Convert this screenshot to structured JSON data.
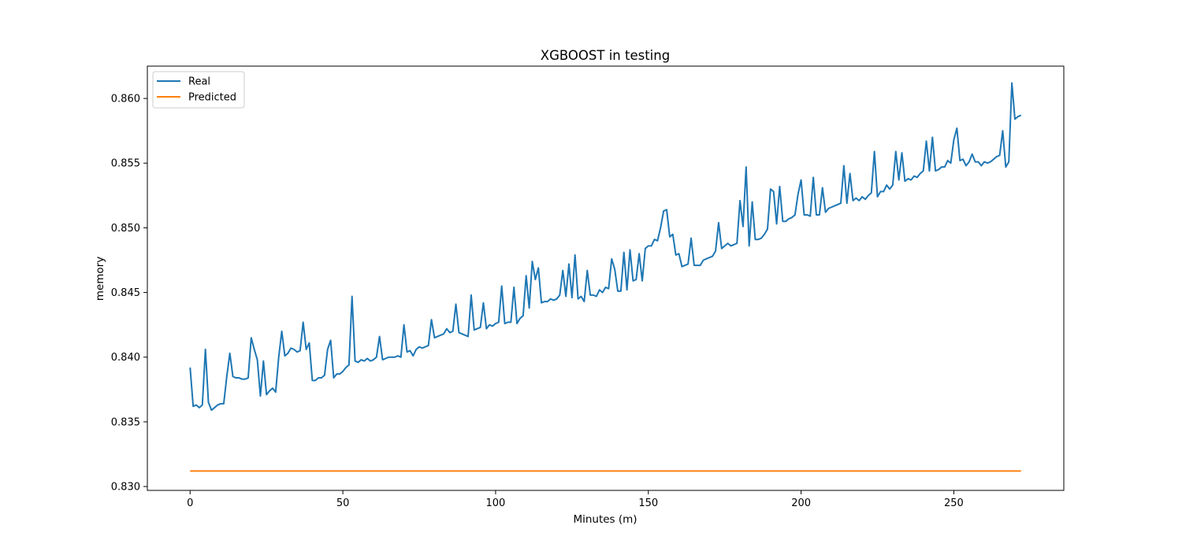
{
  "chart_data": {
    "type": "line",
    "title": "XGBOOST in testing",
    "xlabel": "Minutes (m)",
    "ylabel": "memory",
    "xlim": [
      -14,
      286
    ],
    "ylim": [
      0.8297,
      0.8625
    ],
    "xticks": [
      0,
      50,
      100,
      150,
      200,
      250
    ],
    "xtick_labels": [
      "0",
      "50",
      "100",
      "150",
      "200",
      "250"
    ],
    "yticks": [
      0.83,
      0.835,
      0.84,
      0.845,
      0.85,
      0.855,
      0.86
    ],
    "ytick_labels": [
      "0.830",
      "0.835",
      "0.840",
      "0.845",
      "0.850",
      "0.855",
      "0.860"
    ],
    "grid": false,
    "legend_position": "upper-left",
    "series": [
      {
        "name": "Real",
        "color": "#1f77b4",
        "points": [
          [
            0,
            0.8392
          ],
          [
            1,
            0.8362
          ],
          [
            2,
            0.8363
          ],
          [
            3,
            0.8361
          ],
          [
            4,
            0.8363
          ],
          [
            5,
            0.8406
          ],
          [
            6,
            0.8365
          ],
          [
            7,
            0.8359
          ],
          [
            8,
            0.8361
          ],
          [
            9,
            0.8363
          ],
          [
            10,
            0.8364
          ],
          [
            11,
            0.8364
          ],
          [
            12,
            0.8385
          ],
          [
            13,
            0.8403
          ],
          [
            14,
            0.8385
          ],
          [
            15,
            0.8384
          ],
          [
            16,
            0.8384
          ],
          [
            17,
            0.8383
          ],
          [
            18,
            0.8383
          ],
          [
            19,
            0.8384
          ],
          [
            20,
            0.8415
          ],
          [
            21,
            0.8406
          ],
          [
            22,
            0.8398
          ],
          [
            23,
            0.837
          ],
          [
            24,
            0.8397
          ],
          [
            25,
            0.8371
          ],
          [
            26,
            0.8374
          ],
          [
            27,
            0.8376
          ],
          [
            28,
            0.8373
          ],
          [
            29,
            0.84
          ],
          [
            30,
            0.842
          ],
          [
            31,
            0.8401
          ],
          [
            32,
            0.8403
          ],
          [
            33,
            0.8407
          ],
          [
            34,
            0.8406
          ],
          [
            35,
            0.8404
          ],
          [
            36,
            0.8405
          ],
          [
            37,
            0.8427
          ],
          [
            38,
            0.8406
          ],
          [
            39,
            0.8411
          ],
          [
            40,
            0.8382
          ],
          [
            41,
            0.8382
          ],
          [
            42,
            0.8384
          ],
          [
            43,
            0.8384
          ],
          [
            44,
            0.8386
          ],
          [
            45,
            0.8406
          ],
          [
            46,
            0.8413
          ],
          [
            47,
            0.8384
          ],
          [
            48,
            0.8387
          ],
          [
            49,
            0.8387
          ],
          [
            50,
            0.8389
          ],
          [
            51,
            0.8392
          ],
          [
            52,
            0.8394
          ],
          [
            53,
            0.8447
          ],
          [
            54,
            0.8397
          ],
          [
            55,
            0.8396
          ],
          [
            56,
            0.8398
          ],
          [
            57,
            0.8397
          ],
          [
            58,
            0.8399
          ],
          [
            59,
            0.8397
          ],
          [
            60,
            0.8398
          ],
          [
            61,
            0.84
          ],
          [
            62,
            0.8416
          ],
          [
            63,
            0.8398
          ],
          [
            64,
            0.8399
          ],
          [
            65,
            0.84
          ],
          [
            66,
            0.84
          ],
          [
            67,
            0.84
          ],
          [
            68,
            0.8401
          ],
          [
            69,
            0.84
          ],
          [
            70,
            0.8425
          ],
          [
            71,
            0.8404
          ],
          [
            72,
            0.8405
          ],
          [
            73,
            0.8401
          ],
          [
            74,
            0.8406
          ],
          [
            75,
            0.8408
          ],
          [
            76,
            0.8407
          ],
          [
            77,
            0.8408
          ],
          [
            78,
            0.8409
          ],
          [
            79,
            0.8429
          ],
          [
            80,
            0.8415
          ],
          [
            81,
            0.8416
          ],
          [
            82,
            0.8417
          ],
          [
            83,
            0.8418
          ],
          [
            84,
            0.8422
          ],
          [
            85,
            0.8419
          ],
          [
            86,
            0.842
          ],
          [
            87,
            0.8441
          ],
          [
            88,
            0.8419
          ],
          [
            89,
            0.8418
          ],
          [
            90,
            0.8417
          ],
          [
            91,
            0.8416
          ],
          [
            92,
            0.8448
          ],
          [
            93,
            0.8421
          ],
          [
            94,
            0.8422
          ],
          [
            95,
            0.8423
          ],
          [
            96,
            0.8442
          ],
          [
            97,
            0.8422
          ],
          [
            98,
            0.8425
          ],
          [
            99,
            0.8424
          ],
          [
            100,
            0.8426
          ],
          [
            101,
            0.8427
          ],
          [
            102,
            0.8455
          ],
          [
            103,
            0.8426
          ],
          [
            104,
            0.8427
          ],
          [
            105,
            0.8427
          ],
          [
            106,
            0.8454
          ],
          [
            107,
            0.8426
          ],
          [
            108,
            0.843
          ],
          [
            109,
            0.8432
          ],
          [
            110,
            0.8463
          ],
          [
            111,
            0.8438
          ],
          [
            112,
            0.8474
          ],
          [
            113,
            0.846
          ],
          [
            114,
            0.8469
          ],
          [
            115,
            0.8442
          ],
          [
            116,
            0.8443
          ],
          [
            117,
            0.8443
          ],
          [
            118,
            0.8445
          ],
          [
            119,
            0.8444
          ],
          [
            120,
            0.8445
          ],
          [
            121,
            0.8448
          ],
          [
            122,
            0.8467
          ],
          [
            123,
            0.8447
          ],
          [
            124,
            0.8472
          ],
          [
            125,
            0.8446
          ],
          [
            126,
            0.8479
          ],
          [
            127,
            0.8445
          ],
          [
            128,
            0.8447
          ],
          [
            129,
            0.8443
          ],
          [
            130,
            0.8467
          ],
          [
            131,
            0.8448
          ],
          [
            132,
            0.8448
          ],
          [
            133,
            0.8447
          ],
          [
            134,
            0.8452
          ],
          [
            135,
            0.845
          ],
          [
            136,
            0.8454
          ],
          [
            137,
            0.8453
          ],
          [
            138,
            0.8476
          ],
          [
            139,
            0.8468
          ],
          [
            140,
            0.8451
          ],
          [
            141,
            0.8451
          ],
          [
            142,
            0.8481
          ],
          [
            143,
            0.8452
          ],
          [
            144,
            0.8483
          ],
          [
            145,
            0.8459
          ],
          [
            146,
            0.846
          ],
          [
            147,
            0.848
          ],
          [
            148,
            0.8459
          ],
          [
            149,
            0.8484
          ],
          [
            150,
            0.8486
          ],
          [
            151,
            0.8486
          ],
          [
            152,
            0.8491
          ],
          [
            153,
            0.849
          ],
          [
            154,
            0.85
          ],
          [
            155,
            0.8513
          ],
          [
            156,
            0.8514
          ],
          [
            157,
            0.8493
          ],
          [
            158,
            0.8495
          ],
          [
            159,
            0.8479
          ],
          [
            160,
            0.848
          ],
          [
            161,
            0.847
          ],
          [
            162,
            0.8471
          ],
          [
            163,
            0.8472
          ],
          [
            164,
            0.8492
          ],
          [
            165,
            0.8471
          ],
          [
            166,
            0.8471
          ],
          [
            167,
            0.8471
          ],
          [
            168,
            0.8475
          ],
          [
            169,
            0.8476
          ],
          [
            170,
            0.8477
          ],
          [
            171,
            0.8478
          ],
          [
            172,
            0.8482
          ],
          [
            173,
            0.8504
          ],
          [
            174,
            0.8484
          ],
          [
            175,
            0.8486
          ],
          [
            176,
            0.8488
          ],
          [
            177,
            0.8486
          ],
          [
            178,
            0.8487
          ],
          [
            179,
            0.8488
          ],
          [
            180,
            0.8521
          ],
          [
            181,
            0.8501
          ],
          [
            182,
            0.8547
          ],
          [
            183,
            0.8486
          ],
          [
            184,
            0.852
          ],
          [
            185,
            0.8491
          ],
          [
            186,
            0.8491
          ],
          [
            187,
            0.8492
          ],
          [
            188,
            0.8495
          ],
          [
            189,
            0.8499
          ],
          [
            190,
            0.853
          ],
          [
            191,
            0.8528
          ],
          [
            192,
            0.8503
          ],
          [
            193,
            0.8532
          ],
          [
            194,
            0.8505
          ],
          [
            195,
            0.8505
          ],
          [
            196,
            0.8507
          ],
          [
            197,
            0.8508
          ],
          [
            198,
            0.851
          ],
          [
            199,
            0.8526
          ],
          [
            200,
            0.8537
          ],
          [
            201,
            0.851
          ],
          [
            202,
            0.851
          ],
          [
            203,
            0.8509
          ],
          [
            204,
            0.8539
          ],
          [
            205,
            0.851
          ],
          [
            206,
            0.851
          ],
          [
            207,
            0.8531
          ],
          [
            208,
            0.8512
          ],
          [
            209,
            0.8515
          ],
          [
            210,
            0.8516
          ],
          [
            211,
            0.8517
          ],
          [
            212,
            0.8518
          ],
          [
            213,
            0.8519
          ],
          [
            214,
            0.8548
          ],
          [
            215,
            0.8519
          ],
          [
            216,
            0.8542
          ],
          [
            217,
            0.8521
          ],
          [
            218,
            0.8523
          ],
          [
            219,
            0.8521
          ],
          [
            220,
            0.8524
          ],
          [
            221,
            0.8522
          ],
          [
            222,
            0.8525
          ],
          [
            223,
            0.8527
          ],
          [
            224,
            0.8559
          ],
          [
            225,
            0.8524
          ],
          [
            226,
            0.8528
          ],
          [
            227,
            0.8528
          ],
          [
            228,
            0.8533
          ],
          [
            229,
            0.853
          ],
          [
            230,
            0.8533
          ],
          [
            231,
            0.8559
          ],
          [
            232,
            0.8537
          ],
          [
            233,
            0.8558
          ],
          [
            234,
            0.8536
          ],
          [
            235,
            0.8538
          ],
          [
            236,
            0.8537
          ],
          [
            237,
            0.854
          ],
          [
            238,
            0.8539
          ],
          [
            239,
            0.8542
          ],
          [
            240,
            0.8544
          ],
          [
            241,
            0.8567
          ],
          [
            242,
            0.8544
          ],
          [
            243,
            0.857
          ],
          [
            244,
            0.8544
          ],
          [
            245,
            0.8545
          ],
          [
            246,
            0.8547
          ],
          [
            247,
            0.8547
          ],
          [
            248,
            0.8552
          ],
          [
            249,
            0.855
          ],
          [
            250,
            0.8568
          ],
          [
            251,
            0.8577
          ],
          [
            252,
            0.8552
          ],
          [
            253,
            0.8553
          ],
          [
            254,
            0.8548
          ],
          [
            255,
            0.8551
          ],
          [
            256,
            0.8557
          ],
          [
            257,
            0.8551
          ],
          [
            258,
            0.8551
          ],
          [
            259,
            0.8548
          ],
          [
            260,
            0.8551
          ],
          [
            261,
            0.855
          ],
          [
            262,
            0.8551
          ],
          [
            263,
            0.8553
          ],
          [
            264,
            0.8555
          ],
          [
            265,
            0.8556
          ],
          [
            266,
            0.8575
          ],
          [
            267,
            0.8547
          ],
          [
            268,
            0.8551
          ],
          [
            269,
            0.8612
          ],
          [
            270,
            0.8584
          ],
          [
            271,
            0.8586
          ],
          [
            272,
            0.8587
          ]
        ]
      },
      {
        "name": "Predicted",
        "color": "#ff7f0e",
        "points": [
          [
            0,
            0.8312
          ],
          [
            272,
            0.8312
          ]
        ]
      }
    ]
  }
}
